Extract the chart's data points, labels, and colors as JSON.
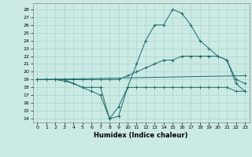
{
  "xlabel": "Humidex (Indice chaleur)",
  "background_color": "#cceae4",
  "grid_color": "#aad4ce",
  "line_color": "#1a6b6b",
  "xlim": [
    -0.5,
    23.5
  ],
  "ylim": [
    13.5,
    28.8
  ],
  "xticks": [
    0,
    1,
    2,
    3,
    4,
    5,
    6,
    7,
    8,
    9,
    10,
    11,
    12,
    13,
    14,
    15,
    16,
    17,
    18,
    19,
    20,
    21,
    22,
    23
  ],
  "yticks": [
    14,
    15,
    16,
    17,
    18,
    19,
    20,
    21,
    22,
    23,
    24,
    25,
    26,
    27,
    28
  ],
  "series": [
    {
      "x": [
        0,
        1,
        2,
        3,
        4,
        5,
        6,
        7,
        8,
        9,
        10,
        11,
        12,
        13,
        14,
        15,
        16,
        17,
        18,
        19,
        20,
        21,
        22,
        23
      ],
      "y": [
        19,
        19,
        19,
        19,
        18.5,
        18,
        18,
        18,
        14,
        15.5,
        18,
        21,
        24,
        26,
        26,
        28,
        27.5,
        26,
        24,
        23,
        22,
        21.5,
        19,
        18.5
      ]
    },
    {
      "x": [
        0,
        1,
        2,
        3,
        4,
        5,
        6,
        7,
        8,
        9,
        10,
        11,
        12,
        13,
        14,
        15,
        16,
        17,
        18,
        19,
        20,
        21,
        22,
        23
      ],
      "y": [
        19,
        19,
        19,
        18.8,
        18.5,
        18,
        17.5,
        17,
        14,
        14.3,
        18,
        18,
        18,
        18,
        18,
        18,
        18,
        18,
        18,
        18,
        18,
        18,
        17.5,
        17.5
      ]
    },
    {
      "x": [
        0,
        23
      ],
      "y": [
        19,
        19.5
      ]
    },
    {
      "x": [
        0,
        1,
        2,
        3,
        4,
        5,
        6,
        7,
        8,
        9,
        10,
        11,
        12,
        13,
        14,
        15,
        16,
        17,
        18,
        19,
        20,
        21,
        22,
        23
      ],
      "y": [
        19,
        19,
        19,
        19,
        19,
        19,
        19,
        19,
        19,
        19,
        19.5,
        20,
        20.5,
        21,
        21.5,
        21.5,
        22,
        22,
        22,
        22,
        22,
        21.5,
        18.5,
        17.5
      ]
    }
  ]
}
